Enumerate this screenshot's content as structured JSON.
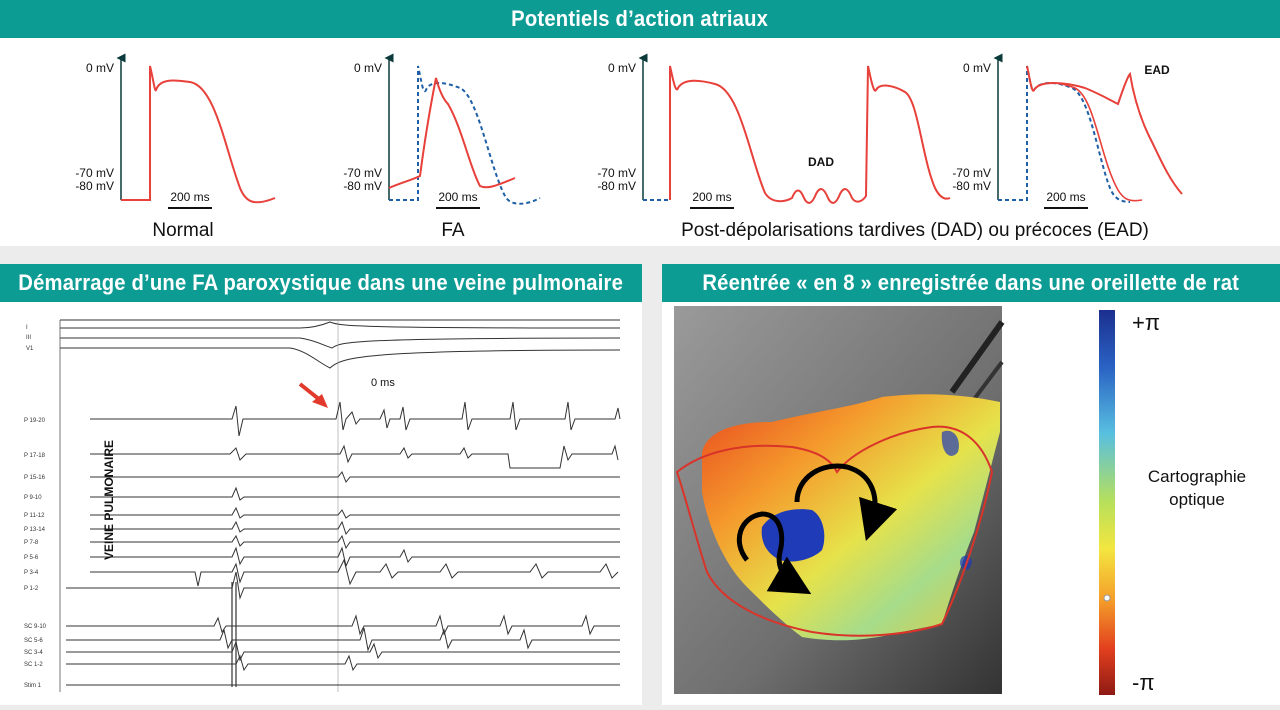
{
  "top": {
    "title": "Potentiels d’action atriaux",
    "mv0": "0 mV",
    "mv70": "-70 mV",
    "mv80": "-80 mV",
    "scale": "200 ms",
    "captions": [
      "Normal",
      "FA",
      "Post-dépolarisations tardives (DAD) ou précoces (EAD)"
    ],
    "dad": "DAD",
    "ead": "EAD"
  },
  "left": {
    "title": "Démarrage d’une FA paroxystique dans une veine pulmonaire",
    "zero_ms": "0 ms",
    "vein_label": "VEINE PULMONAIRE",
    "leads_top": [
      "I",
      "III",
      "V1"
    ],
    "leads_p": [
      "P 19-20",
      "P 17-18",
      "P 15-16",
      "P 9-10",
      "P 11-12",
      "P 13-14",
      "P 7-8",
      "P 5-6",
      "P 3-4",
      "P 1-2"
    ],
    "leads_sc": [
      "SC 9-10",
      "SC 5-6",
      "SC 3-4",
      "SC 1-2",
      "Stim 1"
    ]
  },
  "right": {
    "title": "Réentrée « en 8 » enregistrée dans une oreillette de rat",
    "plus": "+π",
    "minus": "-π",
    "legend_line1": "Cartographie",
    "legend_line2": "optique"
  },
  "colors": {
    "teal": "#0d9c94",
    "ap_red": "#e8403a",
    "ap_blue": "#1f5fa6"
  }
}
